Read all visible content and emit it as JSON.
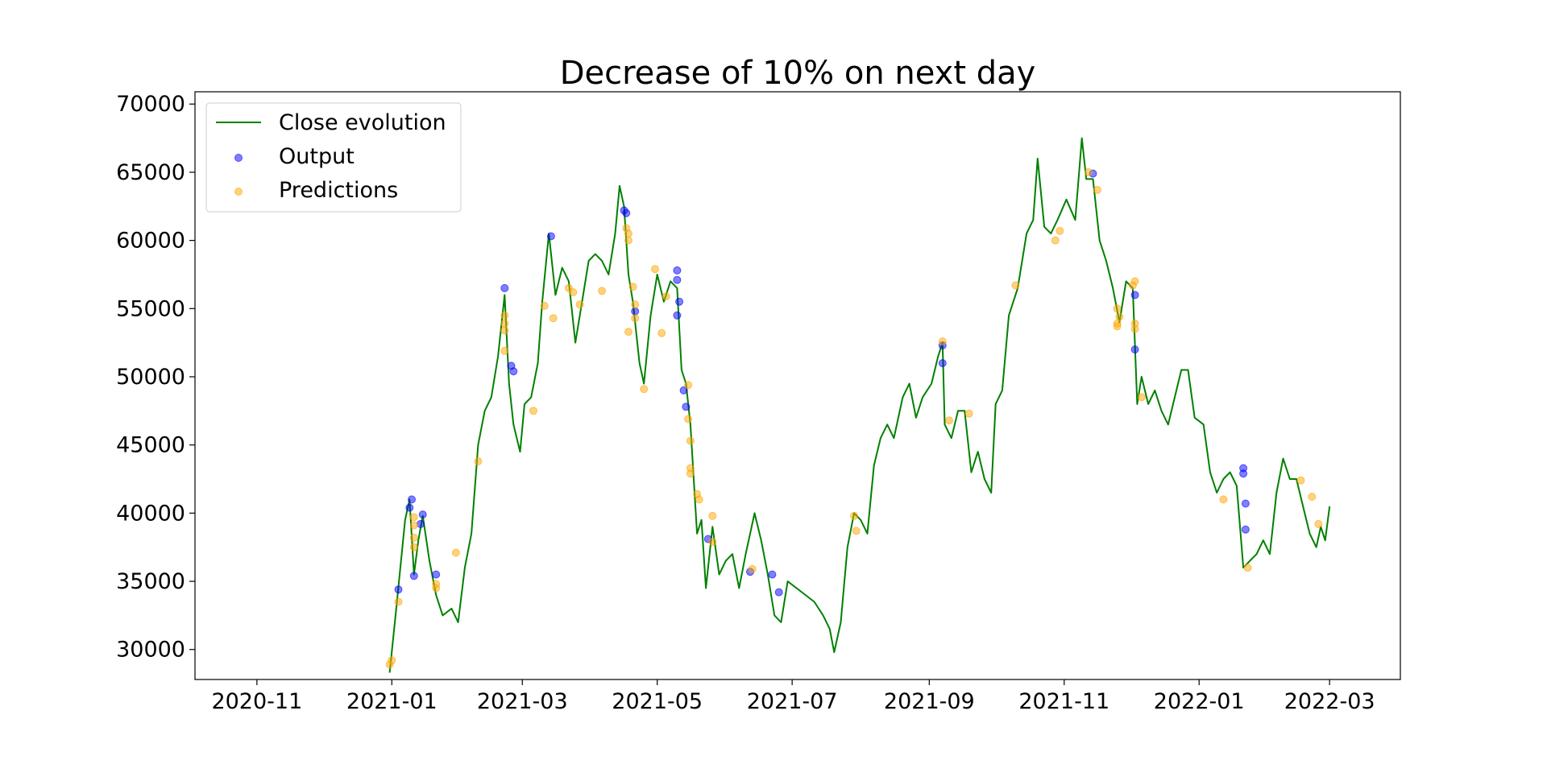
{
  "chart_data": {
    "type": "line",
    "title": "Decrease of 10% on next day",
    "xlabel": "",
    "ylabel": "",
    "x_ticks": [
      "2020-11",
      "2021-01",
      "2021-03",
      "2021-05",
      "2021-07",
      "2021-09",
      "2021-11",
      "2022-01",
      "2022-03"
    ],
    "y_ticks": [
      30000,
      35000,
      40000,
      45000,
      50000,
      55000,
      60000,
      65000,
      70000
    ],
    "xlim": [
      "2020-10-04",
      "2022-04-02"
    ],
    "ylim": [
      27800,
      70900
    ],
    "grid": false,
    "legend_position": "top-left",
    "series": [
      {
        "name": "Close evolution",
        "kind": "line",
        "color": "#008000",
        "points": [
          [
            "2020-12-31",
            28300
          ],
          [
            "2021-01-03",
            33000
          ],
          [
            "2021-01-07",
            39500
          ],
          [
            "2021-01-09",
            41000
          ],
          [
            "2021-01-11",
            35500
          ],
          [
            "2021-01-13",
            38000
          ],
          [
            "2021-01-15",
            39800
          ],
          [
            "2021-01-18",
            36500
          ],
          [
            "2021-01-21",
            34000
          ],
          [
            "2021-01-24",
            32500
          ],
          [
            "2021-01-28",
            33000
          ],
          [
            "2021-01-31",
            32000
          ],
          [
            "2021-02-03",
            36000
          ],
          [
            "2021-02-06",
            38500
          ],
          [
            "2021-02-09",
            45000
          ],
          [
            "2021-02-12",
            47500
          ],
          [
            "2021-02-15",
            48500
          ],
          [
            "2021-02-18",
            51500
          ],
          [
            "2021-02-21",
            56000
          ],
          [
            "2021-02-23",
            49500
          ],
          [
            "2021-02-25",
            46500
          ],
          [
            "2021-02-28",
            44500
          ],
          [
            "2021-03-02",
            48000
          ],
          [
            "2021-03-05",
            48500
          ],
          [
            "2021-03-08",
            51000
          ],
          [
            "2021-03-10",
            55500
          ],
          [
            "2021-03-13",
            60500
          ],
          [
            "2021-03-16",
            56000
          ],
          [
            "2021-03-19",
            58000
          ],
          [
            "2021-03-22",
            57000
          ],
          [
            "2021-03-25",
            52500
          ],
          [
            "2021-03-28",
            55500
          ],
          [
            "2021-03-31",
            58500
          ],
          [
            "2021-04-03",
            59000
          ],
          [
            "2021-04-06",
            58500
          ],
          [
            "2021-04-09",
            57500
          ],
          [
            "2021-04-12",
            60500
          ],
          [
            "2021-04-14",
            64000
          ],
          [
            "2021-04-16",
            62500
          ],
          [
            "2021-04-18",
            57500
          ],
          [
            "2021-04-20",
            55500
          ],
          [
            "2021-04-23",
            51000
          ],
          [
            "2021-04-25",
            49500
          ],
          [
            "2021-04-28",
            54500
          ],
          [
            "2021-05-01",
            57500
          ],
          [
            "2021-05-04",
            55500
          ],
          [
            "2021-05-07",
            57000
          ],
          [
            "2021-05-10",
            56500
          ],
          [
            "2021-05-12",
            50500
          ],
          [
            "2021-05-14",
            49500
          ],
          [
            "2021-05-16",
            46500
          ],
          [
            "2021-05-19",
            38500
          ],
          [
            "2021-05-21",
            39500
          ],
          [
            "2021-05-23",
            34500
          ],
          [
            "2021-05-26",
            39000
          ],
          [
            "2021-05-29",
            35500
          ],
          [
            "2021-06-01",
            36500
          ],
          [
            "2021-06-04",
            37000
          ],
          [
            "2021-06-07",
            34500
          ],
          [
            "2021-06-10",
            37000
          ],
          [
            "2021-06-14",
            40000
          ],
          [
            "2021-06-17",
            38000
          ],
          [
            "2021-06-20",
            35500
          ],
          [
            "2021-06-23",
            32500
          ],
          [
            "2021-06-26",
            32000
          ],
          [
            "2021-06-29",
            35000
          ],
          [
            "2021-07-03",
            34500
          ],
          [
            "2021-07-07",
            34000
          ],
          [
            "2021-07-11",
            33500
          ],
          [
            "2021-07-15",
            32500
          ],
          [
            "2021-07-18",
            31500
          ],
          [
            "2021-07-20",
            29800
          ],
          [
            "2021-07-23",
            32000
          ],
          [
            "2021-07-26",
            37500
          ],
          [
            "2021-07-29",
            40000
          ],
          [
            "2021-08-01",
            39500
          ],
          [
            "2021-08-04",
            38500
          ],
          [
            "2021-08-07",
            43500
          ],
          [
            "2021-08-10",
            45500
          ],
          [
            "2021-08-13",
            46500
          ],
          [
            "2021-08-16",
            45500
          ],
          [
            "2021-08-20",
            48500
          ],
          [
            "2021-08-23",
            49500
          ],
          [
            "2021-08-26",
            47000
          ],
          [
            "2021-08-29",
            48500
          ],
          [
            "2021-09-02",
            49500
          ],
          [
            "2021-09-05",
            51500
          ],
          [
            "2021-09-07",
            52500
          ],
          [
            "2021-09-08",
            46500
          ],
          [
            "2021-09-11",
            45500
          ],
          [
            "2021-09-14",
            47500
          ],
          [
            "2021-09-17",
            47500
          ],
          [
            "2021-09-20",
            43000
          ],
          [
            "2021-09-23",
            44500
          ],
          [
            "2021-09-26",
            42500
          ],
          [
            "2021-09-29",
            41500
          ],
          [
            "2021-10-01",
            48000
          ],
          [
            "2021-10-04",
            49000
          ],
          [
            "2021-10-07",
            54500
          ],
          [
            "2021-10-11",
            56500
          ],
          [
            "2021-10-15",
            60500
          ],
          [
            "2021-10-18",
            61500
          ],
          [
            "2021-10-20",
            66000
          ],
          [
            "2021-10-23",
            61000
          ],
          [
            "2021-10-26",
            60500
          ],
          [
            "2021-10-29",
            61500
          ],
          [
            "2021-11-02",
            63000
          ],
          [
            "2021-11-06",
            61500
          ],
          [
            "2021-11-09",
            67500
          ],
          [
            "2021-11-11",
            64500
          ],
          [
            "2021-11-14",
            64500
          ],
          [
            "2021-11-17",
            60000
          ],
          [
            "2021-11-20",
            58500
          ],
          [
            "2021-11-23",
            56500
          ],
          [
            "2021-11-26",
            54000
          ],
          [
            "2021-11-29",
            57000
          ],
          [
            "2021-12-02",
            56500
          ],
          [
            "2021-12-04",
            48000
          ],
          [
            "2021-12-06",
            50000
          ],
          [
            "2021-12-09",
            48000
          ],
          [
            "2021-12-12",
            49000
          ],
          [
            "2021-12-15",
            47500
          ],
          [
            "2021-12-18",
            46500
          ],
          [
            "2021-12-21",
            48500
          ],
          [
            "2021-12-24",
            50500
          ],
          [
            "2021-12-27",
            50500
          ],
          [
            "2021-12-30",
            47000
          ],
          [
            "2022-01-03",
            46500
          ],
          [
            "2022-01-06",
            43000
          ],
          [
            "2022-01-09",
            41500
          ],
          [
            "2022-01-12",
            42500
          ],
          [
            "2022-01-15",
            43000
          ],
          [
            "2022-01-18",
            42000
          ],
          [
            "2022-01-21",
            36000
          ],
          [
            "2022-01-24",
            36500
          ],
          [
            "2022-01-27",
            37000
          ],
          [
            "2022-01-30",
            38000
          ],
          [
            "2022-02-02",
            37000
          ],
          [
            "2022-02-05",
            41500
          ],
          [
            "2022-02-08",
            44000
          ],
          [
            "2022-02-11",
            42500
          ],
          [
            "2022-02-14",
            42500
          ],
          [
            "2022-02-17",
            40500
          ],
          [
            "2022-02-20",
            38500
          ],
          [
            "2022-02-23",
            37500
          ],
          [
            "2022-02-25",
            39000
          ],
          [
            "2022-02-27",
            38000
          ],
          [
            "2022-03-01",
            40500
          ]
        ]
      },
      {
        "name": "Output",
        "kind": "scatter",
        "color": "#0000ff",
        "points": [
          [
            "2021-01-04",
            34400
          ],
          [
            "2021-01-09",
            40400
          ],
          [
            "2021-01-10",
            41000
          ],
          [
            "2021-01-11",
            35400
          ],
          [
            "2021-01-14",
            39200
          ],
          [
            "2021-01-15",
            39900
          ],
          [
            "2021-01-21",
            35500
          ],
          [
            "2021-02-21",
            56500
          ],
          [
            "2021-02-24",
            50800
          ],
          [
            "2021-02-25",
            50400
          ],
          [
            "2021-03-14",
            60300
          ],
          [
            "2021-04-16",
            62200
          ],
          [
            "2021-04-17",
            62000
          ],
          [
            "2021-04-21",
            54800
          ],
          [
            "2021-05-10",
            57800
          ],
          [
            "2021-05-10",
            57100
          ],
          [
            "2021-05-11",
            55500
          ],
          [
            "2021-05-10",
            54500
          ],
          [
            "2021-05-13",
            49000
          ],
          [
            "2021-05-14",
            47800
          ],
          [
            "2021-05-24",
            38100
          ],
          [
            "2021-06-12",
            35700
          ],
          [
            "2021-06-22",
            35500
          ],
          [
            "2021-06-25",
            34200
          ],
          [
            "2021-09-07",
            52300
          ],
          [
            "2021-09-07",
            51000
          ],
          [
            "2021-11-14",
            64900
          ],
          [
            "2021-12-03",
            56000
          ],
          [
            "2021-12-03",
            52000
          ],
          [
            "2022-01-21",
            43300
          ],
          [
            "2022-01-21",
            42900
          ],
          [
            "2022-01-22",
            40700
          ],
          [
            "2022-01-22",
            38800
          ]
        ]
      },
      {
        "name": "Predictions",
        "kind": "scatter",
        "color": "#ffa500",
        "points": [
          [
            "2020-12-31",
            28900
          ],
          [
            "2021-01-01",
            29200
          ],
          [
            "2021-01-04",
            33500
          ],
          [
            "2021-01-11",
            39700
          ],
          [
            "2021-01-11",
            39100
          ],
          [
            "2021-01-11",
            38200
          ],
          [
            "2021-01-11",
            37500
          ],
          [
            "2021-01-21",
            34800
          ],
          [
            "2021-01-21",
            34500
          ],
          [
            "2021-01-30",
            37100
          ],
          [
            "2021-02-09",
            43800
          ],
          [
            "2021-02-21",
            54500
          ],
          [
            "2021-02-21",
            53900
          ],
          [
            "2021-02-21",
            53400
          ],
          [
            "2021-02-21",
            51900
          ],
          [
            "2021-03-06",
            47500
          ],
          [
            "2021-03-11",
            55200
          ],
          [
            "2021-03-15",
            54300
          ],
          [
            "2021-03-22",
            56500
          ],
          [
            "2021-03-24",
            56200
          ],
          [
            "2021-03-27",
            55300
          ],
          [
            "2021-04-06",
            56300
          ],
          [
            "2021-04-17",
            60900
          ],
          [
            "2021-04-18",
            60500
          ],
          [
            "2021-04-18",
            60000
          ],
          [
            "2021-04-18",
            53300
          ],
          [
            "2021-04-20",
            56600
          ],
          [
            "2021-04-21",
            55300
          ],
          [
            "2021-04-21",
            54300
          ],
          [
            "2021-04-25",
            49100
          ],
          [
            "2021-04-30",
            57900
          ],
          [
            "2021-05-03",
            53200
          ],
          [
            "2021-05-05",
            55900
          ],
          [
            "2021-05-15",
            49400
          ],
          [
            "2021-05-15",
            46900
          ],
          [
            "2021-05-16",
            45300
          ],
          [
            "2021-05-16",
            43300
          ],
          [
            "2021-05-16",
            42900
          ],
          [
            "2021-05-19",
            41400
          ],
          [
            "2021-05-20",
            41000
          ],
          [
            "2021-05-26",
            39800
          ],
          [
            "2021-05-26",
            37900
          ],
          [
            "2021-06-13",
            35900
          ],
          [
            "2021-07-29",
            39800
          ],
          [
            "2021-07-30",
            38700
          ],
          [
            "2021-09-07",
            52600
          ],
          [
            "2021-09-10",
            46800
          ],
          [
            "2021-09-19",
            47300
          ],
          [
            "2021-10-10",
            56700
          ],
          [
            "2021-10-28",
            60000
          ],
          [
            "2021-10-30",
            60700
          ],
          [
            "2021-11-12",
            65000
          ],
          [
            "2021-11-16",
            63700
          ],
          [
            "2021-11-25",
            55000
          ],
          [
            "2021-11-26",
            54400
          ],
          [
            "2021-11-25",
            53900
          ],
          [
            "2021-11-25",
            53700
          ],
          [
            "2021-12-03",
            57000
          ],
          [
            "2021-12-02",
            56700
          ],
          [
            "2021-12-03",
            53900
          ],
          [
            "2021-12-03",
            53500
          ],
          [
            "2021-12-06",
            48500
          ],
          [
            "2022-01-12",
            41000
          ],
          [
            "2022-01-23",
            36000
          ],
          [
            "2022-02-16",
            42400
          ],
          [
            "2022-02-21",
            41200
          ],
          [
            "2022-02-24",
            39200
          ]
        ]
      }
    ]
  }
}
